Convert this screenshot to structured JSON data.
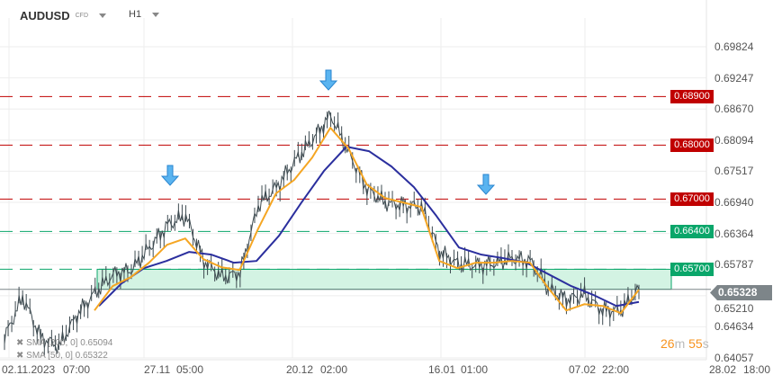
{
  "header": {
    "symbol": "AUDUSD",
    "symbol_type": "CFD",
    "timeframe": "H1"
  },
  "y_axis": {
    "ticks": [
      "0.69824",
      "0.69247",
      "0.68670",
      "0.68094",
      "0.67517",
      "0.66940",
      "0.66364",
      "0.65787",
      "0.65210",
      "0.64634",
      "0.64057"
    ]
  },
  "x_axis": {
    "ticks": [
      "02.11.2023",
      "07:00",
      "27.11",
      "05:00",
      "20.12",
      "02:00",
      "16.01",
      "01:00",
      "07.02",
      "22:00",
      "28.02",
      "18:00"
    ]
  },
  "levels": [
    {
      "value": "0.68900",
      "color": "#c00000",
      "kind": "dashed"
    },
    {
      "value": "0.68000",
      "color": "#c00000",
      "kind": "dashed"
    },
    {
      "value": "0.67000",
      "color": "#c00000",
      "kind": "dashed"
    },
    {
      "value": "0.66400",
      "color": "#0aa66a",
      "kind": "dashed"
    },
    {
      "value": "0.65700",
      "color": "#0aa66a",
      "kind": "dashed"
    }
  ],
  "current_price": {
    "value": "0.65328",
    "color": "#7d8589"
  },
  "legend": [
    {
      "label": "SMA [200, 0]",
      "value": "0.65094",
      "color": "#2b2f9e"
    },
    {
      "label": "SMA [50, 0]",
      "value": "0.65322",
      "color": "#f5a623"
    }
  ],
  "timer": {
    "minutes": "26",
    "m": "m",
    "seconds": "55",
    "s": "s"
  },
  "annotations": {
    "arrows": [
      "down-arrow",
      "down-arrow",
      "down-arrow"
    ],
    "zone": {
      "from": 0.6533,
      "to": 0.657,
      "color": "#c8f0dc"
    }
  },
  "chart_data": {
    "type": "line",
    "ylim": [
      0.64057,
      0.69824
    ],
    "series": [
      {
        "values": [
          0.64436,
          0.65187,
          0.64436,
          0.64269,
          0.64853,
          0.6527,
          0.65604,
          0.65687,
          0.66104,
          0.66521,
          0.66688,
          0.65854,
          0.65554,
          0.65637,
          0.66888,
          0.67222,
          0.67689,
          0.68106,
          0.68556,
          0.67856,
          0.67188,
          0.66938,
          0.66888,
          0.66855,
          0.66021,
          0.65804,
          0.65771,
          0.65804,
          0.65904,
          0.65854,
          0.65354,
          0.65137,
          0.6522,
          0.64937,
          0.64937,
          0.65328
        ],
        "color": "#3d4a50"
      },
      {
        "name": "SMA [50, 0]",
        "values": [
          0.64937,
          0.65387,
          0.65554,
          0.65821,
          0.66154,
          0.66271,
          0.65887,
          0.65737,
          0.65687,
          0.66438,
          0.67105,
          0.67355,
          0.67772,
          0.68323,
          0.67939,
          0.67272,
          0.67022,
          0.66938,
          0.66855,
          0.65854,
          0.65721,
          0.65821,
          0.65821,
          0.65854,
          0.65821,
          0.65354,
          0.64937,
          0.65053,
          0.6502,
          0.64887,
          0.65322
        ],
        "color": "#f5a623"
      },
      {
        "name": "SMA [200, 0]",
        "values": [
          0.6502,
          0.65437,
          0.65721,
          0.65854,
          0.66021,
          0.65971,
          0.65821,
          0.65854,
          0.66321,
          0.66938,
          0.67522,
          0.67972,
          0.67889,
          0.67605,
          0.67222,
          0.66688,
          0.66104,
          0.65971,
          0.65904,
          0.65821,
          0.65604,
          0.65387,
          0.6522,
          0.6502,
          0.65094
        ],
        "color": "#2b2f9e"
      }
    ]
  }
}
